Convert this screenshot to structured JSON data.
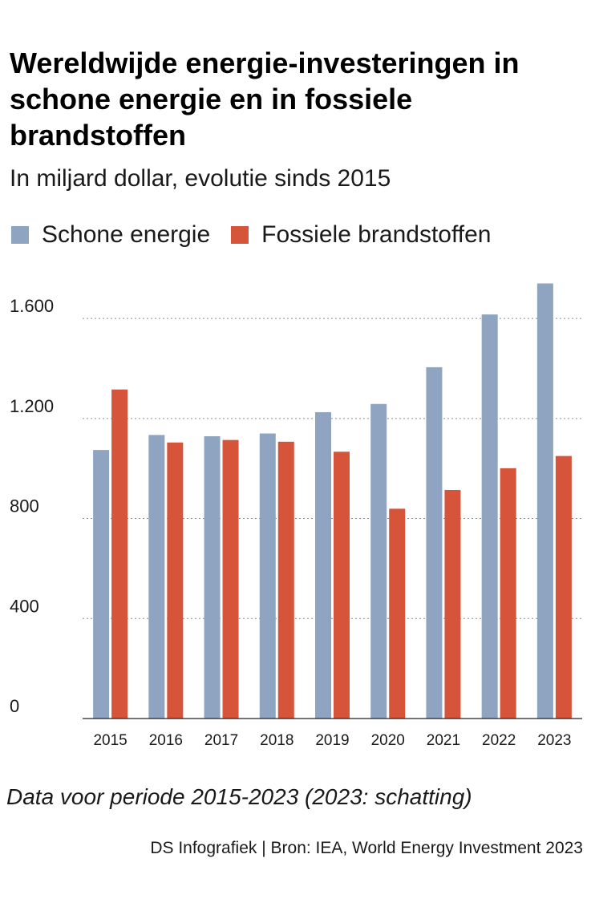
{
  "header": {
    "title": "Wereldwijde energie-investeringen in schone energie en in fossiele brandstoffen",
    "subtitle": "In miljard dollar, evolutie sinds 2015"
  },
  "legend": [
    {
      "label": "Schone energie",
      "color": "#8ea4c0"
    },
    {
      "label": "Fossiele brandstoffen",
      "color": "#d6543a"
    }
  ],
  "footer": {
    "note": "Data voor periode 2015-2023 (2023: schatting)",
    "source": "DS Infografiek | Bron: IEA, World Energy Investment 2023"
  },
  "chart_data": {
    "type": "bar",
    "categories": [
      "2015",
      "2016",
      "2017",
      "2018",
      "2019",
      "2020",
      "2021",
      "2022",
      "2023"
    ],
    "series": [
      {
        "name": "Schone energie",
        "color": "#8ea4c0",
        "values": [
          1074,
          1134,
          1129,
          1140,
          1225,
          1258,
          1405,
          1616,
          1740
        ]
      },
      {
        "name": "Fossiele brandstoffen",
        "color": "#d6543a",
        "values": [
          1316,
          1104,
          1114,
          1107,
          1067,
          839,
          914,
          1001,
          1050
        ]
      }
    ],
    "yticks": [
      0,
      400,
      800,
      1200,
      1600
    ],
    "ytick_labels": [
      "0",
      "400",
      "800",
      "1.200",
      "1.600"
    ],
    "ylim": [
      0,
      1750
    ],
    "grid": true,
    "legend_position": "top-left"
  }
}
